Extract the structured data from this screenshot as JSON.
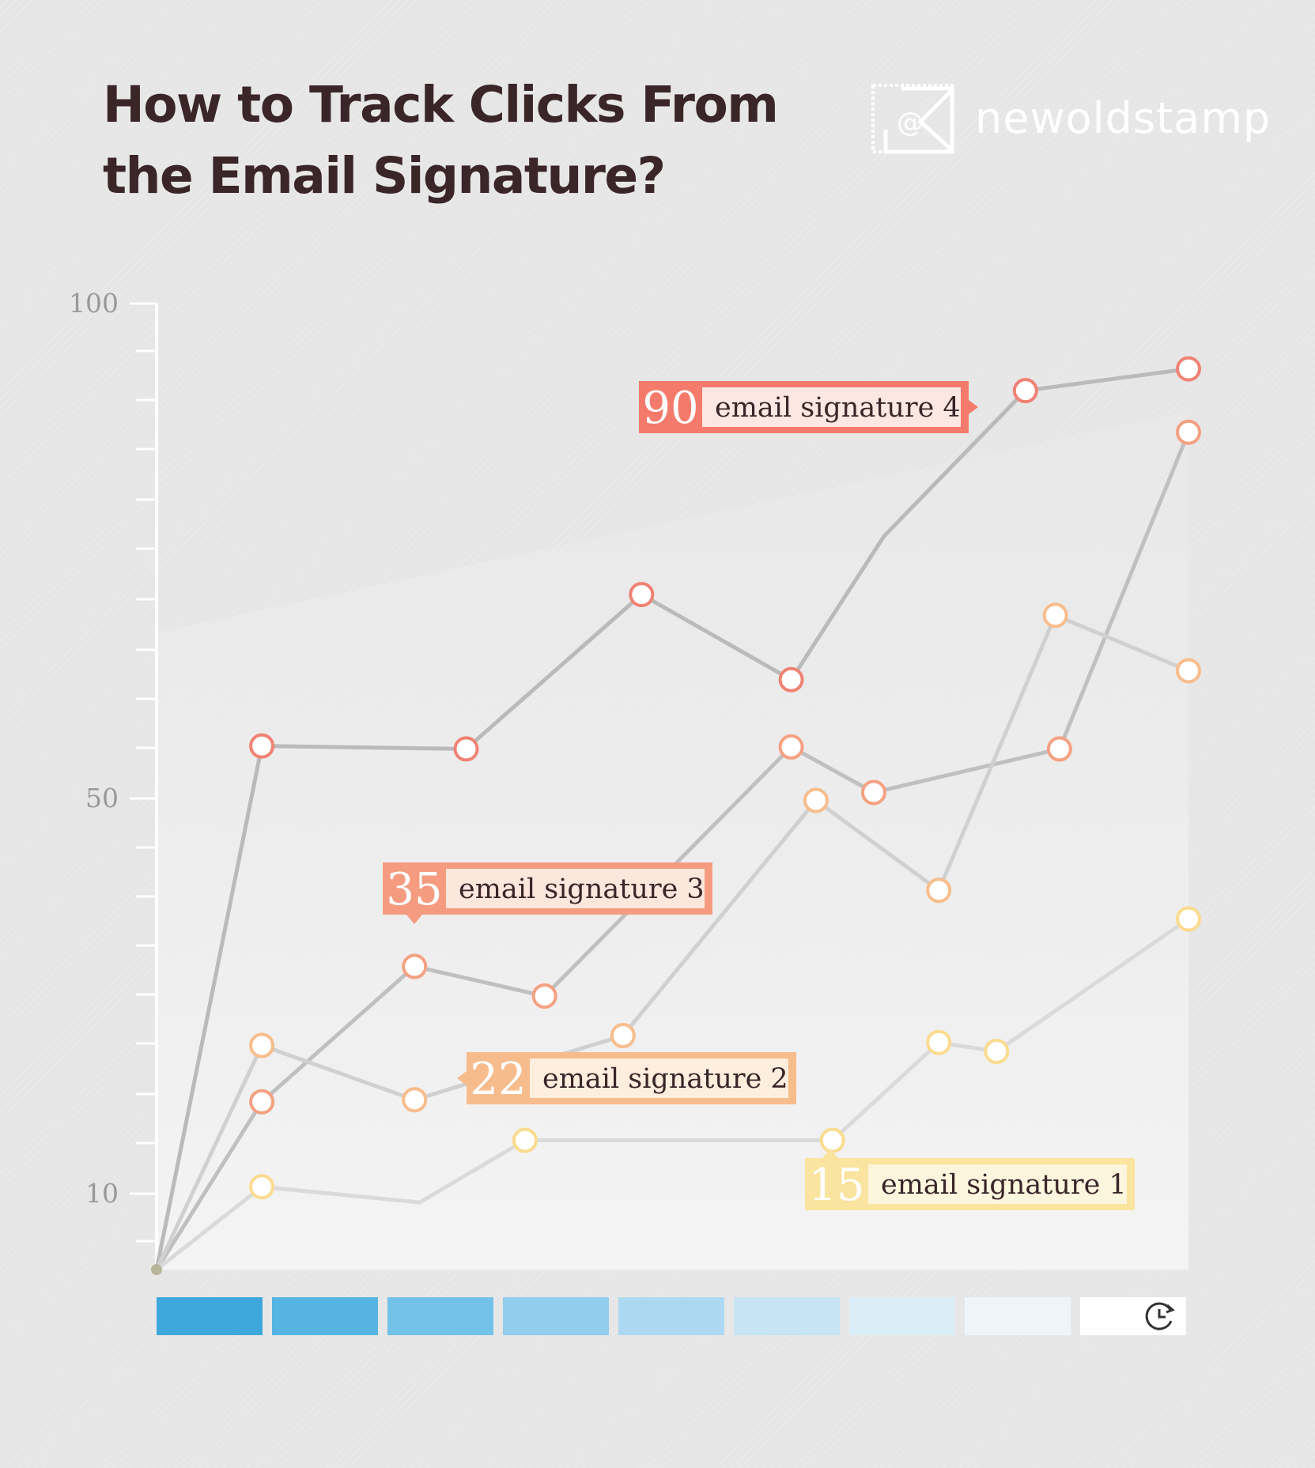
{
  "header": {
    "title_line1": "How to Track Clicks From",
    "title_line2": "the Email Signature?"
  },
  "brand": {
    "name": "newoldstamp",
    "logo_icon": "envelope-stamp-icon",
    "logo_glyph": "@"
  },
  "timeline": {
    "icon": "clock-history-icon",
    "colors": [
      "#3ea8dc",
      "#56b4e2",
      "#72c1e8",
      "#91cdec",
      "#acd9f1",
      "#c6e4f3",
      "#dbeef8",
      "#edf5fb",
      "#ffffff"
    ]
  },
  "chart_data": {
    "type": "line",
    "yticks": [
      {
        "value": 100,
        "label": "100"
      },
      {
        "value": 50,
        "label": "50"
      },
      {
        "value": 10,
        "label": "10"
      }
    ],
    "ylim": [
      3,
      100
    ],
    "xlim": [
      0,
      100
    ],
    "series": [
      {
        "name": "email signature 4",
        "label_value": "90",
        "color": "#f08274",
        "points": [
          [
            0,
            3
          ],
          [
            10.2,
            55.3
          ],
          [
            30,
            55
          ],
          [
            47,
            70.6
          ],
          [
            61.5,
            62
          ],
          [
            70.5,
            76.5
          ],
          [
            84.2,
            91.2
          ],
          [
            100,
            93.4
          ]
        ]
      },
      {
        "name": "email signature 3",
        "label_value": "35",
        "color": "#f4a182",
        "points": [
          [
            0,
            3
          ],
          [
            10.2,
            19.3
          ],
          [
            25,
            33
          ],
          [
            37.6,
            30
          ],
          [
            61.5,
            55.2
          ],
          [
            69.5,
            50.6
          ],
          [
            87.5,
            55
          ],
          [
            100,
            87
          ]
        ]
      },
      {
        "name": "email signature 2",
        "label_value": "22",
        "color": "#f7bd8c",
        "points": [
          [
            0,
            3
          ],
          [
            10.2,
            25
          ],
          [
            25,
            19.5
          ],
          [
            45.2,
            26
          ],
          [
            63.9,
            49.8
          ],
          [
            75.8,
            40.7
          ],
          [
            87.1,
            68.5
          ],
          [
            100,
            62.9
          ]
        ]
      },
      {
        "name": "email signature 1",
        "label_value": "15",
        "color": "#fbdb8e",
        "points": [
          [
            0,
            3
          ],
          [
            10.2,
            10.7
          ],
          [
            25.5,
            9.2
          ],
          [
            35.7,
            15.4
          ],
          [
            65.5,
            15.4
          ],
          [
            75.8,
            25.3
          ],
          [
            81.4,
            24.4
          ],
          [
            100,
            37.8
          ]
        ]
      }
    ],
    "markers": [
      [
        [
          10.2,
          55.3
        ],
        [
          30,
          55
        ],
        [
          47,
          70.6
        ],
        [
          61.5,
          62
        ],
        [
          84.2,
          91.2
        ],
        [
          100,
          93.4
        ]
      ],
      [
        [
          25,
          33
        ],
        [
          37.6,
          30
        ],
        [
          61.5,
          55.2
        ],
        [
          69.5,
          50.6
        ],
        [
          87.5,
          55
        ],
        [
          100,
          87
        ],
        [
          10.2,
          19.3
        ]
      ],
      [
        [
          10.2,
          25
        ],
        [
          25,
          19.5
        ],
        [
          45.2,
          26
        ],
        [
          63.9,
          49.8
        ],
        [
          75.8,
          40.7
        ],
        [
          87.1,
          68.5
        ],
        [
          100,
          62.9
        ]
      ],
      [
        [
          10.2,
          10.7
        ],
        [
          35.7,
          15.4
        ],
        [
          65.5,
          15.4
        ],
        [
          75.8,
          25.3
        ],
        [
          81.4,
          24.4
        ],
        [
          100,
          37.8
        ]
      ]
    ],
    "annotations": [
      {
        "series": 0,
        "value": "90",
        "text": "email signature 4",
        "fill": "#f47a6b",
        "inner": "#fde7e3",
        "pointer": "right"
      },
      {
        "series": 1,
        "value": "35",
        "text": "email signature 3",
        "fill": "#f59c80",
        "inner": "#fde6dc",
        "pointer": "down"
      },
      {
        "series": 2,
        "value": "22",
        "text": "email signature 2",
        "fill": "#f7bc8c",
        "inner": "#fdeede",
        "pointer": "left"
      },
      {
        "series": 3,
        "value": "15",
        "text": "email signature 1",
        "fill": "#fae49f",
        "inner": "#fdf6de",
        "pointer": "up"
      }
    ],
    "grid": false,
    "legend": "inline"
  }
}
